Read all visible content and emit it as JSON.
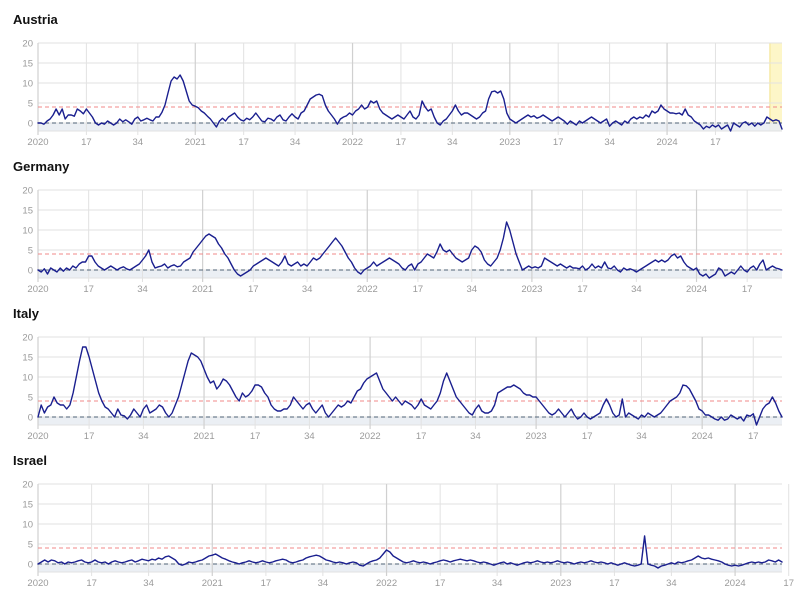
{
  "colors": {
    "series": "#1a1f8f",
    "threshold": "#f08a8a",
    "baseline": "#6f7f8f",
    "band": "#e9edf3",
    "highlight": "#fdf6c8",
    "highlight_edge": "#f3e28a",
    "grid": "#e2e2e2",
    "year_grid": "#d0d0d0"
  },
  "chart_data": [
    {
      "type": "line",
      "title": "Austria",
      "ylim": [
        -2,
        20
      ],
      "yticks": [
        0,
        5,
        10,
        15,
        20
      ],
      "xticks": [
        {
          "label": "2020",
          "x": 0
        },
        {
          "label": "17",
          "x": 16
        },
        {
          "label": "34",
          "x": 33
        },
        {
          "label": "2021",
          "x": 52
        },
        {
          "label": "17",
          "x": 68
        },
        {
          "label": "34",
          "x": 85
        },
        {
          "label": "2022",
          "x": 104
        },
        {
          "label": "17",
          "x": 120
        },
        {
          "label": "34",
          "x": 137
        },
        {
          "label": "2023",
          "x": 156
        },
        {
          "label": "17",
          "x": 172
        },
        {
          "label": "34",
          "x": 189
        },
        {
          "label": "2024",
          "x": 208
        },
        {
          "label": "17",
          "x": 224
        }
      ],
      "threshold": 4,
      "baseline": 0,
      "band": [
        -2,
        0
      ],
      "highlight_from": 242,
      "grid": true,
      "values": [
        0,
        0,
        -0.3,
        0.5,
        1,
        2,
        3.5,
        2,
        3.5,
        1,
        2,
        2,
        1.7,
        3.5,
        3,
        2.3,
        3.5,
        2.5,
        1.5,
        0,
        -0.5,
        0,
        -0.3,
        0.5,
        0,
        -0.5,
        0,
        1,
        0.3,
        0.8,
        0.3,
        -0.3,
        1,
        1.5,
        0.5,
        0.8,
        1.2,
        0.8,
        0.5,
        1.5,
        1.5,
        2.7,
        4.5,
        7.5,
        10.5,
        11.5,
        11,
        12,
        10.5,
        8,
        5.5,
        4.5,
        4.2,
        3.8,
        3,
        2.5,
        1.7,
        1,
        0,
        -1,
        0.5,
        1.2,
        0.5,
        1.5,
        2,
        2.5,
        1.5,
        0.8,
        0.5,
        1.2,
        0.8,
        1.5,
        2.5,
        1.5,
        0.5,
        0.3,
        1.2,
        1,
        0.5,
        1.5,
        2,
        0.8,
        0.5,
        1.5,
        2.3,
        1.5,
        1,
        2.5,
        3,
        4.5,
        6,
        6.5,
        7,
        7.2,
        6.8,
        4.5,
        3,
        2,
        1,
        -0.3,
        1,
        1.5,
        1.8,
        2.5,
        2,
        3,
        3.5,
        4.5,
        3.5,
        4,
        5.5,
        5,
        5.5,
        3.5,
        2.5,
        2,
        1.5,
        1,
        1.5,
        2,
        1.5,
        1,
        2,
        3,
        1.5,
        1,
        2,
        5.5,
        4,
        3,
        3.5,
        1.5,
        0,
        -0.5,
        0.5,
        1,
        2,
        3,
        4.5,
        3,
        2,
        2.5,
        2.5,
        2,
        1.5,
        1,
        1.5,
        2.5,
        3,
        6,
        7.8,
        8,
        7.5,
        8,
        6,
        2.5,
        1,
        0.5,
        0,
        0.5,
        1,
        1.5,
        2,
        1.5,
        1.8,
        1.2,
        1.5,
        2,
        1.5,
        1,
        0.5,
        1,
        1.5,
        1,
        0.5,
        -0.3,
        0.5,
        0,
        -0.5,
        0.5,
        0,
        0.5,
        1,
        1.5,
        1,
        0.5,
        0,
        0.5,
        1,
        -0.8,
        0,
        0.5,
        0,
        -0.5,
        0.5,
        0,
        1,
        1.5,
        1,
        1.5,
        1.2,
        2,
        1.5,
        3,
        2.5,
        3,
        4.5,
        3.5,
        3,
        2.5,
        2.5,
        2.3,
        2.5,
        2,
        3.5,
        2,
        1.5,
        0.5,
        0,
        -0.5,
        -1.5,
        -0.8,
        -1.2,
        -0.5,
        -1,
        -0.5,
        -1.5,
        -1,
        -0.5,
        -2,
        0,
        -0.5,
        -1,
        0,
        0.3,
        -0.5,
        0,
        -0.8,
        0,
        -0.5,
        0,
        1.5,
        1,
        0.5,
        0.8,
        0.5,
        -1.5
      ]
    },
    {
      "type": "line",
      "title": "Germany",
      "ylim": [
        -2,
        20
      ],
      "yticks": [
        0,
        5,
        10,
        15,
        20
      ],
      "xticks": [
        {
          "label": "2020",
          "x": 0
        },
        {
          "label": "17",
          "x": 16
        },
        {
          "label": "34",
          "x": 33
        },
        {
          "label": "2021",
          "x": 52
        },
        {
          "label": "17",
          "x": 68
        },
        {
          "label": "34",
          "x": 85
        },
        {
          "label": "2022",
          "x": 104
        },
        {
          "label": "17",
          "x": 120
        },
        {
          "label": "34",
          "x": 137
        },
        {
          "label": "2023",
          "x": 156
        },
        {
          "label": "17",
          "x": 172
        },
        {
          "label": "34",
          "x": 189
        },
        {
          "label": "2024",
          "x": 208
        },
        {
          "label": "17",
          "x": 224
        }
      ],
      "threshold": 4,
      "baseline": 0,
      "band": [
        -2,
        0
      ],
      "highlight_from": 242,
      "grid": true,
      "values": [
        0,
        -0.5,
        0.3,
        -1,
        0.5,
        0,
        -0.5,
        0.5,
        -0.3,
        0.5,
        0,
        1,
        0.5,
        1.5,
        2,
        2,
        3.5,
        3.5,
        2,
        1,
        0.5,
        0,
        0.5,
        1,
        0.5,
        0,
        0.5,
        0.8,
        0.3,
        0,
        0.5,
        1,
        1.5,
        2.5,
        3.5,
        5,
        2,
        0.5,
        0.8,
        1,
        1.5,
        0.5,
        1,
        1.3,
        0.8,
        1,
        2,
        2.5,
        3,
        4.5,
        5.5,
        6.5,
        7.5,
        8.5,
        9,
        8.5,
        8,
        6.5,
        5.5,
        4,
        3,
        1.5,
        0,
        -1,
        -1.5,
        -1,
        -0.5,
        0,
        1,
        1.5,
        2,
        2.5,
        3,
        2.5,
        2,
        1.5,
        1,
        2,
        3.5,
        1.5,
        1,
        1.5,
        2,
        1,
        1.5,
        1,
        2,
        3,
        2.5,
        3,
        4,
        5,
        6,
        7,
        8,
        7,
        6,
        4.5,
        3,
        2,
        0.5,
        -0.5,
        -1,
        0,
        0.5,
        1,
        2,
        1,
        1.5,
        2,
        2.5,
        3,
        2.5,
        2,
        1.5,
        0.5,
        0,
        1,
        1.5,
        0,
        1.5,
        2,
        3,
        4,
        3.5,
        3,
        4.5,
        6.5,
        5,
        4.5,
        5,
        4,
        3,
        2.5,
        2,
        2.5,
        3,
        5,
        6,
        5.5,
        4.5,
        2.5,
        1.5,
        1,
        2,
        3,
        5,
        8,
        12,
        10,
        7,
        4,
        2,
        0,
        0.5,
        1,
        0.5,
        0.8,
        0.5,
        1,
        3,
        2.5,
        2,
        1.5,
        1,
        1.5,
        1,
        0.5,
        1,
        0.5,
        0.5,
        0.3,
        1,
        0,
        0.5,
        1.5,
        0.5,
        1,
        0.5,
        2,
        0.5,
        0.3,
        1,
        0,
        -0.5,
        0.5,
        0,
        0.3,
        0,
        -0.5,
        0,
        0.5,
        1,
        1.5,
        2,
        2.5,
        2,
        2.5,
        2,
        2.5,
        3.5,
        4,
        3,
        3.5,
        2,
        1,
        0.5,
        0,
        0.5,
        -1,
        -1.5,
        -1,
        -2,
        -1.5,
        -1,
        0.5,
        0,
        -1.5,
        -1,
        -0.5,
        -1,
        0,
        1,
        0,
        -0.5,
        0.5,
        1,
        0,
        1.5,
        2.5,
        0,
        0.5,
        1,
        0.5,
        0.3,
        0
      ]
    },
    {
      "type": "line",
      "title": "Italy",
      "ylim": [
        -2,
        20
      ],
      "yticks": [
        0,
        5,
        10,
        15,
        20
      ],
      "xticks": [
        {
          "label": "2020",
          "x": 0
        },
        {
          "label": "17",
          "x": 16
        },
        {
          "label": "34",
          "x": 33
        },
        {
          "label": "2021",
          "x": 52
        },
        {
          "label": "17",
          "x": 68
        },
        {
          "label": "34",
          "x": 85
        },
        {
          "label": "2022",
          "x": 104
        },
        {
          "label": "17",
          "x": 120
        },
        {
          "label": "34",
          "x": 137
        },
        {
          "label": "2023",
          "x": 156
        },
        {
          "label": "17",
          "x": 172
        },
        {
          "label": "34",
          "x": 189
        },
        {
          "label": "2024",
          "x": 208
        },
        {
          "label": "17",
          "x": 224
        }
      ],
      "threshold": 4,
      "baseline": 0,
      "band": [
        -2,
        0
      ],
      "highlight_from": 242,
      "grid": true,
      "values": [
        0,
        3,
        1,
        2.5,
        3,
        5,
        3.5,
        3,
        3,
        2,
        3,
        6,
        10,
        14,
        17.5,
        17.5,
        15,
        12,
        9,
        6,
        4,
        2.5,
        2,
        1,
        0,
        2,
        0.5,
        0.3,
        -0.5,
        0.5,
        2,
        1,
        0,
        2,
        3,
        1,
        1.5,
        2,
        3,
        2.5,
        1,
        0,
        1,
        3,
        5,
        8,
        11,
        14,
        16,
        15.5,
        15,
        14,
        12,
        10,
        8.5,
        9,
        7,
        8,
        9.5,
        9,
        8,
        6.5,
        5,
        4,
        6,
        5,
        5.5,
        6.5,
        8,
        8,
        7.5,
        6,
        5,
        3,
        2,
        1.5,
        1.5,
        2,
        2,
        3,
        5,
        4,
        3,
        2,
        3,
        3.5,
        2,
        1,
        2,
        3,
        1,
        0,
        1,
        2,
        3,
        2.5,
        3,
        4,
        3.5,
        5,
        6.5,
        7,
        8.5,
        9.5,
        10,
        10.5,
        11,
        9,
        7,
        6,
        5,
        4,
        5,
        4,
        3,
        4,
        3.5,
        3,
        2,
        3,
        4.5,
        3,
        2.5,
        2,
        3,
        4,
        6,
        9,
        11,
        9,
        7,
        5,
        4,
        3,
        2,
        1,
        0.5,
        2,
        3,
        1.5,
        1,
        1,
        1.5,
        3,
        6,
        6.5,
        7,
        7.5,
        7.5,
        8,
        7.5,
        7,
        6,
        5.5,
        5.5,
        5,
        5,
        4,
        3,
        2,
        1,
        0.5,
        1,
        2,
        1,
        0,
        1,
        2,
        0.5,
        -0.5,
        0,
        1,
        0,
        -0.5,
        0,
        0.5,
        1,
        3,
        4.5,
        3,
        1,
        0,
        0.5,
        4.5,
        0,
        1,
        0.5,
        0,
        -0.5,
        0.5,
        0,
        1,
        0.5,
        0,
        0.5,
        1,
        2,
        3,
        4,
        4.5,
        5,
        6,
        8,
        7.8,
        7,
        5.5,
        4,
        2,
        1.5,
        0.5,
        0.5,
        0,
        -0.5,
        -0.8,
        0,
        -0.8,
        -0.5,
        0.5,
        0,
        -0.5,
        0,
        -1,
        0.5,
        0.2,
        0.8,
        -2,
        0,
        2,
        3,
        3.5,
        5,
        3.5,
        1.5,
        0
      ]
    },
    {
      "type": "line",
      "title": "Israel",
      "ylim": [
        -2,
        20
      ],
      "yticks": [
        0,
        5,
        10,
        15,
        20
      ],
      "xticks": [
        {
          "label": "2020",
          "x": 0
        },
        {
          "label": "17",
          "x": 16
        },
        {
          "label": "34",
          "x": 33
        },
        {
          "label": "2021",
          "x": 52
        },
        {
          "label": "17",
          "x": 68
        },
        {
          "label": "34",
          "x": 85
        },
        {
          "label": "2022",
          "x": 104
        },
        {
          "label": "17",
          "x": 120
        },
        {
          "label": "34",
          "x": 137
        },
        {
          "label": "2023",
          "x": 156
        },
        {
          "label": "17",
          "x": 172
        },
        {
          "label": "34",
          "x": 189
        },
        {
          "label": "2024",
          "x": 208
        },
        {
          "label": "17",
          "x": 224
        }
      ],
      "threshold": 4,
      "baseline": 0,
      "band": [
        -2,
        0
      ],
      "highlight_from": 242,
      "grid": true,
      "values": [
        0,
        0.5,
        1,
        0.5,
        1,
        0.8,
        0.3,
        0.5,
        0,
        0.5,
        0.3,
        0.5,
        0.8,
        1,
        0.5,
        0.3,
        0.5,
        1,
        0.5,
        0.3,
        0.5,
        0,
        0.5,
        0.8,
        0.5,
        0.3,
        0.5,
        0.8,
        1,
        0.5,
        0.8,
        1.2,
        1,
        0.8,
        1.2,
        1,
        1.5,
        1.2,
        1.8,
        2,
        1.5,
        1,
        0,
        -0.3,
        0,
        0.5,
        0.3,
        0.5,
        0.8,
        1,
        1.5,
        2,
        2.2,
        2.5,
        2,
        1.5,
        1.2,
        0.8,
        0.5,
        0.3,
        0,
        0.3,
        0.5,
        0.8,
        0.5,
        0.3,
        0.5,
        0.8,
        0.5,
        0.3,
        0.5,
        0.8,
        1,
        1.2,
        1,
        0.5,
        0.3,
        0.5,
        0.8,
        1,
        1.5,
        1.8,
        2,
        2.2,
        2,
        1.5,
        1,
        0.8,
        0.5,
        0.3,
        0.5,
        0.3,
        0,
        0.3,
        0.5,
        0.3,
        -0.3,
        -0.5,
        0,
        0.5,
        0.8,
        1,
        1.5,
        2.5,
        3.5,
        3,
        2,
        1.5,
        1,
        0.5,
        0.3,
        0.5,
        0.8,
        0.5,
        0.3,
        0.5,
        0.3,
        0,
        0.3,
        0.5,
        0.8,
        1,
        0.8,
        0.5,
        0.8,
        1,
        1.2,
        1,
        0.8,
        1,
        0.8,
        0.5,
        0.3,
        0.5,
        0.3,
        0,
        -0.3,
        0,
        0.3,
        0.5,
        0,
        0.3,
        0,
        -0.3,
        0,
        0.3,
        0.5,
        0.3,
        0.5,
        0.8,
        0.5,
        0.3,
        0.5,
        0.3,
        0.5,
        0.8,
        0.5,
        0.3,
        0.5,
        0.3,
        0,
        0.3,
        0.5,
        0.3,
        0.5,
        0.8,
        0.5,
        0.3,
        0.5,
        0.3,
        0,
        0.3,
        0,
        -0.3,
        0,
        0.3,
        0,
        -0.3,
        -0.5,
        -0.3,
        0,
        7,
        0,
        -0.3,
        -0.5,
        -1,
        -0.5,
        -0.3,
        0,
        0.3,
        0,
        0.5,
        0.3,
        0.5,
        0.8,
        1,
        1.5,
        2,
        1.5,
        1.3,
        1.5,
        1.2,
        1,
        0.8,
        0.5,
        0,
        -0.3,
        -0.5,
        -0.3,
        -0.5,
        -0.3,
        0,
        0.3,
        0.5,
        0.3,
        0.5,
        0.3,
        0.5,
        1,
        0.8,
        0.5,
        1,
        0.5
      ]
    }
  ]
}
